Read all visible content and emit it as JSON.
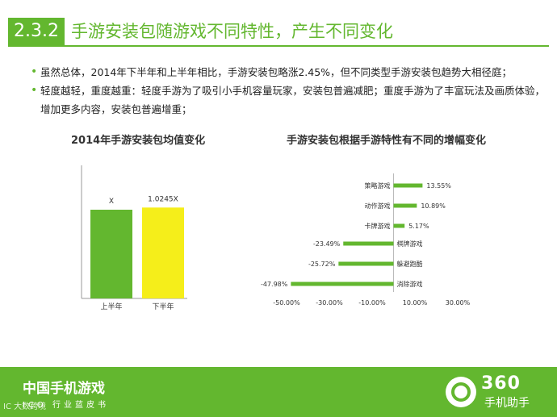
{
  "header": {
    "section_number": "2.3.2",
    "title": "手游安装包随游戏不同特性，产生不同变化"
  },
  "bullets": [
    "虽然总体，2014年下半年和上半年相比，手游安装包略涨2.45%，但不同类型手游安装包趋势大相径庭；",
    "轻度越轻，重度越重：轻度手游为了吸引小手机容量玩家，安装包普遍减肥；重度手游为了丰富玩法及画质体验，增加更多内容，安装包普遍增重；"
  ],
  "chart_data": [
    {
      "type": "bar",
      "title": "2014年手游安装包均值变化",
      "categories": [
        "上半年",
        "下半年"
      ],
      "values": [
        1,
        1.0245
      ],
      "data_labels": [
        "X",
        "1.0245X"
      ],
      "colors": [
        "#63b72f",
        "#f5ee1a"
      ],
      "grid": false
    },
    {
      "type": "bar",
      "orientation": "horizontal",
      "title": "手游安装包根据手游特性有不同的增幅变化",
      "categories": [
        "策略游戏",
        "动作游戏",
        "卡牌游戏",
        "棋牌游戏",
        "躲避跑酷",
        "消除游戏"
      ],
      "values": [
        13.55,
        10.89,
        5.17,
        -23.49,
        -25.72,
        -47.98
      ],
      "data_labels": [
        "13.55%",
        "10.89%",
        "5.17%",
        "-23.49%",
        "-25.72%",
        "-47.98%"
      ],
      "x_ticks": [
        "-50.00%",
        "-30.00%",
        "-10.00%",
        "10.00%",
        "30.00%"
      ],
      "xlim": [
        -50,
        30
      ],
      "color": "#63b72f",
      "grid": false
    }
  ],
  "footer": {
    "title": "中国手机游戏",
    "subtitle": "ICO 行业蓝皮书",
    "watermark": "IC 大数跨境",
    "logo_number": "360",
    "logo_text": "手机助手"
  }
}
